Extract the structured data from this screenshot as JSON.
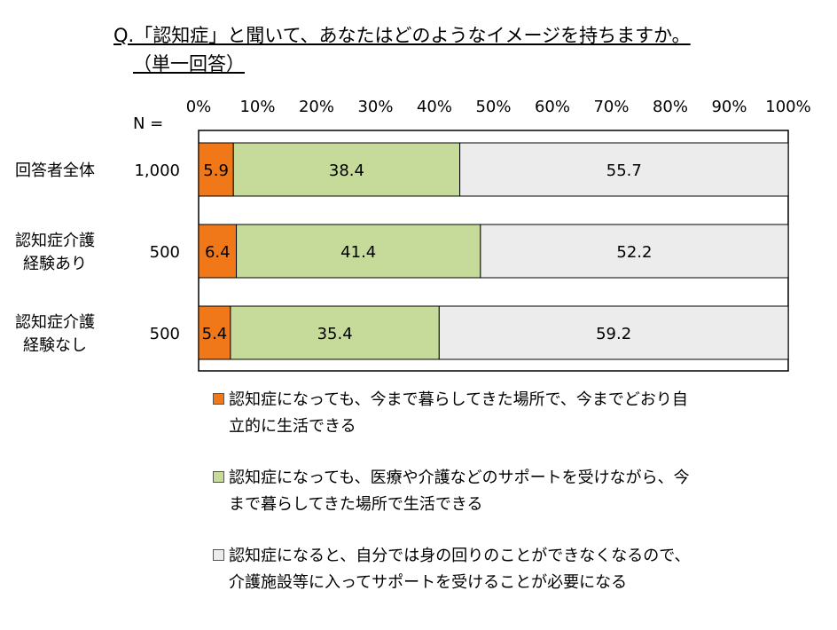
{
  "title_line1": "Q.「認知症」と聞いて、あなたはどのようなイメージを持ちますか。",
  "title_line2": "（単一回答）",
  "colors": {
    "s1": "#F07818",
    "s2": "#C6DB9A",
    "s3": "#ECECEC"
  },
  "chart_data": {
    "type": "bar",
    "orientation": "horizontal",
    "stacked": true,
    "n_label": "N =",
    "categories": [
      "回答者全体",
      "認知症介護\n経験あり",
      "認知症介護\n経験なし"
    ],
    "n_values": [
      "1,000",
      "500",
      "500"
    ],
    "xlim": [
      0,
      100
    ],
    "x_ticks": [
      "0%",
      "10%",
      "20%",
      "30%",
      "40%",
      "50%",
      "60%",
      "70%",
      "80%",
      "90%",
      "100%"
    ],
    "series": [
      {
        "name": "認知症になっても、今まで暮らしてきた場所で、今までどおり自立的に生活できる",
        "values": [
          5.9,
          6.4,
          5.4
        ]
      },
      {
        "name": "認知症になっても、医療や介護などのサポートを受けながら、今まで暮らしてきた場所で生活できる",
        "values": [
          38.4,
          41.4,
          35.4
        ]
      },
      {
        "name": "認知症になると、自分では身の回りのことができなくなるので、介護施設等に入ってサポートを受けることが必要になる",
        "values": [
          55.7,
          52.2,
          59.2
        ]
      }
    ],
    "legend_position": "bottom"
  },
  "legend": [
    {
      "line1": "認知症になっても、今まで暮らしてきた場所で、今までどおり自",
      "line2": "立的に生活できる"
    },
    {
      "line1": "認知症になっても、医療や介護などのサポートを受けながら、今",
      "line2": "まで暮らしてきた場所で生活できる"
    },
    {
      "line1": "認知症になると、自分では身の回りのことができなくなるので、",
      "line2": "介護施設等に入ってサポートを受けることが必要になる"
    }
  ]
}
